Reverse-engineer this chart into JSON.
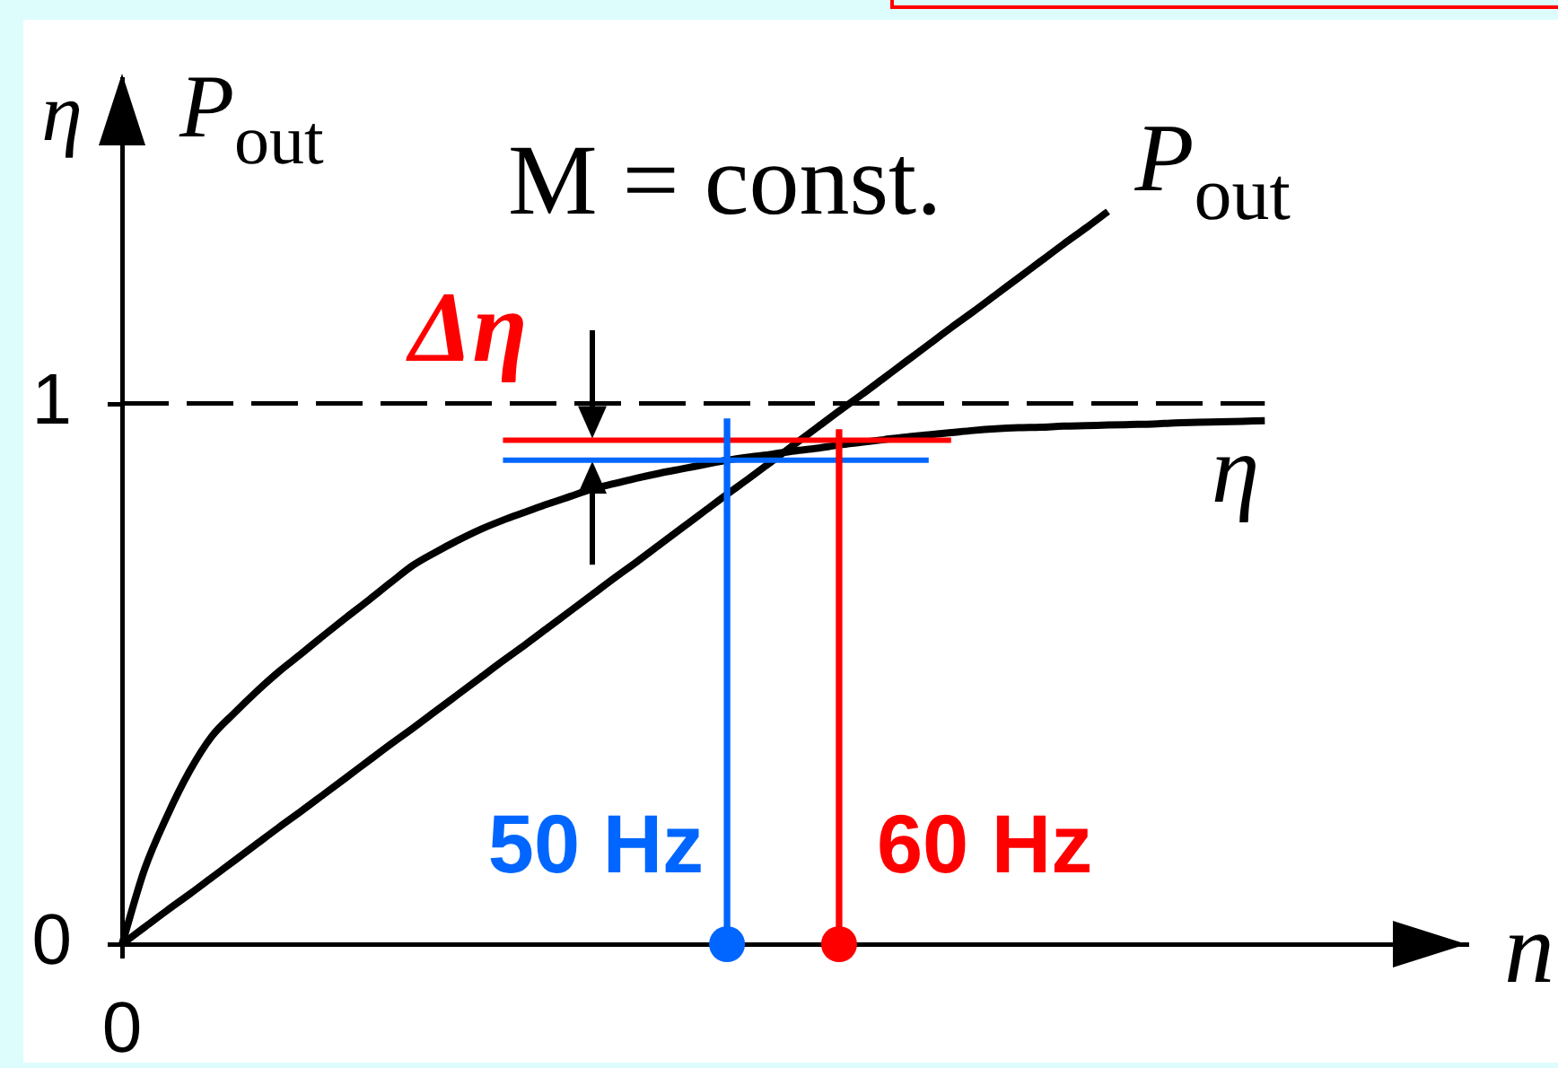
{
  "chart_data": {
    "type": "line",
    "xlabel": "n",
    "ylabel": "η",
    "annotations": [
      "P$_{out}$",
      "M = const.",
      "Δη"
    ],
    "categories": [
      "0",
      null,
      null,
      null,
      null,
      null,
      null,
      null,
      null,
      null,
      null,
      null,
      null,
      null,
      null,
      null,
      null,
      null,
      null,
      null,
      null,
      null,
      null,
      null,
      null,
      null,
      null,
      null,
      null,
      null,
      null,
      null,
      null,
      null,
      null,
      null,
      null,
      null,
      null,
      null,
      null,
      null,
      null,
      null,
      null,
      null,
      null,
      null,
      null,
      null,
      null,
      null,
      null,
      null,
      null,
      null,
      null,
      null,
      null,
      null,
      null
    ],
    "ylim": [
      0,
      1.6
    ],
    "yticks": [
      0,
      1
    ],
    "series": [
      {
        "name": "P$_{out}$",
        "color": "#000000",
        "values": [
          0,
          0.031,
          0.062,
          0.092,
          0.123,
          0.154,
          0.185,
          0.216,
          0.246,
          0.277,
          0.308,
          0.339,
          0.37,
          0.4,
          0.431,
          0.462,
          0.493,
          0.524,
          0.554,
          0.585,
          0.616,
          0.647,
          0.678,
          0.708,
          0.739,
          0.77,
          0.801,
          0.832,
          0.862,
          0.893,
          0.924,
          0.955,
          0.986,
          1.016,
          1.047,
          1.078,
          1.109,
          1.14,
          1.17,
          1.201,
          1.232,
          1.263,
          1.294,
          1.324,
          1.355,
          null,
          null,
          null,
          null,
          null,
          null,
          null,
          null,
          null,
          null,
          null,
          null,
          null,
          null,
          null,
          null
        ]
      },
      {
        "name": "η",
        "color": "#000000",
        "values": [
          0,
          0.138,
          0.236,
          0.319,
          0.384,
          0.427,
          0.467,
          0.504,
          0.537,
          0.571,
          0.604,
          0.636,
          0.669,
          0.701,
          0.725,
          0.747,
          0.767,
          0.784,
          0.799,
          0.814,
          0.828,
          0.842,
          0.852,
          0.862,
          0.871,
          0.879,
          0.887,
          0.895,
          0.901,
          0.906,
          0.912,
          0.917,
          0.923,
          0.928,
          0.933,
          0.938,
          0.942,
          0.946,
          0.95,
          0.953,
          0.955,
          0.956,
          0.958,
          0.959,
          0.96,
          0.961,
          0.962,
          0.964,
          0.965,
          0.966,
          0.967,
          0.968,
          null,
          null,
          null,
          null,
          null,
          null,
          null,
          null,
          null
        ]
      },
      {
        "color": "#000000",
        "line_style": "dashed",
        "values": [
          1,
          1,
          1,
          1,
          1,
          1,
          1,
          1,
          1,
          1,
          1,
          1,
          1,
          1,
          1,
          1,
          1,
          1,
          1,
          1,
          1,
          1,
          1,
          1,
          1,
          1,
          1,
          1,
          1,
          1,
          1,
          1,
          1,
          1,
          1,
          1,
          1,
          1,
          1,
          1,
          1,
          1,
          1,
          1,
          1,
          1,
          1,
          1,
          1,
          1,
          1,
          1,
          null,
          null,
          null,
          null,
          null,
          null,
          null,
          null,
          null
        ]
      },
      {
        "color": "#ff0000",
        "values": [
          null,
          null,
          null,
          null,
          null,
          null,
          null,
          null,
          null,
          null,
          null,
          null,
          null,
          null,
          null,
          null,
          null,
          0.932,
          0.932,
          0.932,
          0.932,
          0.932,
          0.932,
          0.932,
          0.932,
          0.932,
          0.932,
          0.932,
          0.932,
          0.932,
          0.932,
          0.932,
          0.932,
          0.932,
          0.932,
          0.932,
          0.932,
          0.932,
          null,
          null,
          null,
          null,
          null,
          null,
          null,
          null,
          null,
          null,
          null,
          null,
          null,
          null,
          null,
          null,
          null,
          null,
          null,
          null,
          null,
          null,
          null
        ]
      },
      {
        "color": "#0066ff",
        "values": [
          null,
          null,
          null,
          null,
          null,
          null,
          null,
          null,
          null,
          null,
          null,
          null,
          null,
          null,
          null,
          null,
          null,
          0.895,
          0.895,
          0.895,
          0.895,
          0.895,
          0.895,
          0.895,
          0.895,
          0.895,
          0.895,
          0.895,
          0.895,
          0.895,
          0.895,
          0.895,
          0.895,
          0.895,
          0.895,
          0.895,
          0.895,
          null,
          null,
          null,
          null,
          null,
          null,
          null,
          null,
          null,
          null,
          null,
          null,
          null,
          null,
          null,
          null,
          null,
          null,
          null,
          null,
          null,
          null,
          null,
          null
        ]
      },
      {
        "type": "bar",
        "name": "50 Hz",
        "color": "#0066ff",
        "values": [
          null,
          null,
          null,
          null,
          null,
          null,
          null,
          null,
          null,
          null,
          null,
          null,
          null,
          null,
          null,
          null,
          null,
          null,
          null,
          null,
          null,
          null,
          null,
          null,
          null,
          null,
          null,
          0.971,
          null,
          null,
          null,
          null,
          null,
          null,
          null,
          null,
          null,
          null,
          null,
          null,
          null,
          null,
          null,
          null,
          null,
          null,
          null,
          null,
          null,
          null,
          null,
          null,
          null,
          null,
          null,
          null,
          null,
          null,
          null,
          null,
          null
        ]
      },
      {
        "type": "bar",
        "name": "60 Hz",
        "color": "#ff0000",
        "values": [
          null,
          null,
          null,
          null,
          null,
          null,
          null,
          null,
          null,
          null,
          null,
          null,
          null,
          null,
          null,
          null,
          null,
          null,
          null,
          null,
          null,
          null,
          null,
          null,
          null,
          null,
          null,
          null,
          null,
          null,
          null,
          null,
          0.951,
          null,
          null,
          null,
          null,
          null,
          null,
          null,
          null,
          null,
          null,
          null,
          null,
          null,
          null,
          null,
          null,
          null,
          null,
          null,
          null,
          null,
          null,
          null,
          null,
          null,
          null,
          null,
          null
        ]
      },
      {
        "type": "scatter",
        "color": "#0066ff",
        "marker": "circle",
        "values": [
          null,
          null,
          null,
          null,
          null,
          null,
          null,
          null,
          null,
          null,
          null,
          null,
          null,
          null,
          null,
          null,
          null,
          null,
          null,
          null,
          null,
          null,
          null,
          null,
          null,
          null,
          null,
          0,
          null,
          null,
          null,
          null,
          null,
          null,
          null,
          null,
          null,
          null,
          null,
          null,
          null,
          null,
          null,
          null,
          null,
          null,
          null,
          null,
          null,
          null,
          null,
          null,
          null,
          null,
          null,
          null,
          null,
          null,
          null,
          null,
          null
        ]
      },
      {
        "type": "scatter",
        "color": "#ff0000",
        "marker": "circle",
        "values": [
          null,
          null,
          null,
          null,
          null,
          null,
          null,
          null,
          null,
          null,
          null,
          null,
          null,
          null,
          null,
          null,
          null,
          null,
          null,
          null,
          null,
          null,
          null,
          null,
          null,
          null,
          null,
          null,
          null,
          null,
          null,
          null,
          0,
          null,
          null,
          null,
          null,
          null,
          null,
          null,
          null,
          null,
          null,
          null,
          null,
          null,
          null,
          null,
          null,
          null,
          null,
          null,
          null,
          null,
          null,
          null,
          null,
          null,
          null,
          null,
          null
        ]
      }
    ]
  }
}
